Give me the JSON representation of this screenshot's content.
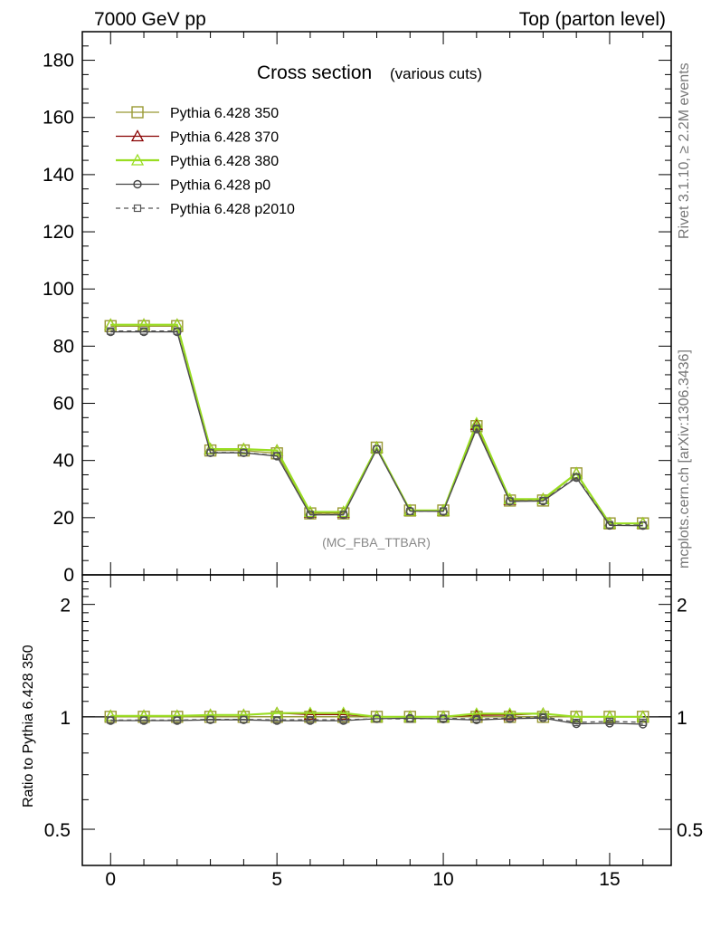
{
  "header": {
    "left": "7000 GeV pp",
    "right": "Top (parton level)"
  },
  "side_labels": {
    "rivet": "Rivet 3.1.10, ≥ 2.2M events",
    "mcplots": "mcplots.cern.ch [arXiv:1306.3436]"
  },
  "ratio_ylabel": "Ratio to Pythia 6.428 350",
  "chart_data": {
    "type": "line",
    "title": "Cross section",
    "subtitle": "(various cuts)",
    "analysis_label": "(MC_FBA_TTBAR)",
    "x": [
      0,
      1,
      2,
      3,
      4,
      5,
      6,
      7,
      8,
      9,
      10,
      11,
      12,
      13,
      14,
      15,
      16
    ],
    "xlim": [
      -0.85,
      16.85
    ],
    "ylim": [
      0,
      190
    ],
    "y_ticks": [
      0,
      20,
      40,
      60,
      80,
      100,
      120,
      140,
      160,
      180
    ],
    "y_tick_labels": [
      "0",
      "20",
      "40",
      "60",
      "80",
      "100",
      "120",
      "140",
      "160",
      "180"
    ],
    "x_ticks": [
      0,
      5,
      10,
      15
    ],
    "x_tick_labels": [
      "0",
      "5",
      "10",
      "15"
    ],
    "ratio_ylim": [
      0.4,
      2.4
    ],
    "ratio_ticks": [
      0.5,
      1,
      2
    ],
    "ratio_tick_labels": [
      "0.5",
      "1",
      "2"
    ],
    "legend_position": "top-left",
    "series": [
      {
        "name": "Pythia 6.428 350",
        "color": "#999933",
        "marker": "square-open",
        "dash": "solid",
        "values": [
          87,
          87,
          87,
          43.5,
          43.5,
          42.5,
          21.5,
          21.5,
          44.5,
          22.5,
          22.5,
          52,
          26,
          26,
          35.5,
          18,
          18
        ]
      },
      {
        "name": "Pythia 6.428 370",
        "color": "#880000",
        "marker": "triangle-open",
        "dash": "solid",
        "values": [
          87.5,
          87.5,
          87.5,
          44,
          44,
          43.5,
          21.8,
          21.8,
          44.5,
          22.5,
          22.5,
          52.5,
          26.3,
          26.5,
          35.5,
          18,
          18
        ]
      },
      {
        "name": "Pythia 6.428 380",
        "color": "#99dd22",
        "marker": "triangle-open",
        "dash": "solid",
        "values": [
          87.5,
          87.5,
          87.5,
          44,
          44,
          43.5,
          22,
          22,
          44.5,
          22.5,
          22.5,
          53,
          26.5,
          26.5,
          35.5,
          18,
          18
        ]
      },
      {
        "name": "Pythia 6.428 p0",
        "color": "#444444",
        "marker": "circle-open",
        "dash": "solid",
        "values": [
          85,
          85,
          85,
          42.7,
          42.7,
          41.5,
          21,
          21,
          44,
          22.3,
          22.2,
          51,
          25.7,
          25.8,
          34,
          17.3,
          17.2
        ]
      },
      {
        "name": "Pythia 6.428 p2010",
        "color": "#555555",
        "marker": "square-small-open",
        "dash": "dashed",
        "values": [
          85.3,
          85.3,
          85.3,
          42.8,
          42.8,
          41.7,
          21.1,
          21.1,
          44,
          22.2,
          22.3,
          51.3,
          25.8,
          26,
          34.3,
          17.5,
          17.4
        ]
      }
    ]
  }
}
